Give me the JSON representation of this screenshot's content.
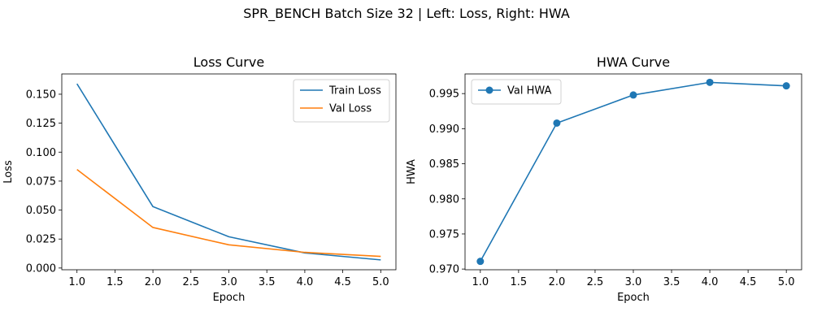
{
  "suptitle": "SPR_BENCH Batch Size 32 | Left: Loss, Right: HWA",
  "chart_data": [
    {
      "type": "line",
      "title": "Loss Curve",
      "xlabel": "Epoch",
      "ylabel": "Loss",
      "x": [
        1,
        2,
        3,
        4,
        5
      ],
      "xlim": [
        0.8,
        5.2
      ],
      "ylim": [
        -0.0015,
        0.1675
      ],
      "xticks": [
        1.0,
        1.5,
        2.0,
        2.5,
        3.0,
        3.5,
        4.0,
        4.5,
        5.0
      ],
      "xtick_labels": [
        "1.0",
        "1.5",
        "2.0",
        "2.5",
        "3.0",
        "3.5",
        "4.0",
        "4.5",
        "5.0"
      ],
      "yticks": [
        0.0,
        0.025,
        0.05,
        0.075,
        0.1,
        0.125,
        0.15
      ],
      "ytick_labels": [
        "0.000",
        "0.025",
        "0.050",
        "0.075",
        "0.100",
        "0.125",
        "0.150"
      ],
      "grid": false,
      "legend": "top-right",
      "series": [
        {
          "name": "Train Loss",
          "values": [
            0.159,
            0.053,
            0.027,
            0.013,
            0.007
          ],
          "color": "#1f77b4",
          "marker": false
        },
        {
          "name": "Val Loss",
          "values": [
            0.085,
            0.035,
            0.02,
            0.0135,
            0.01
          ],
          "color": "#ff7f0e",
          "marker": false
        }
      ]
    },
    {
      "type": "line",
      "title": "HWA Curve",
      "xlabel": "Epoch",
      "ylabel": "HWA",
      "x": [
        1,
        2,
        3,
        4,
        5
      ],
      "xlim": [
        0.8,
        5.2
      ],
      "ylim": [
        0.9699,
        0.9978
      ],
      "xticks": [
        1.0,
        1.5,
        2.0,
        2.5,
        3.0,
        3.5,
        4.0,
        4.5,
        5.0
      ],
      "xtick_labels": [
        "1.0",
        "1.5",
        "2.0",
        "2.5",
        "3.0",
        "3.5",
        "4.0",
        "4.5",
        "5.0"
      ],
      "yticks": [
        0.97,
        0.975,
        0.98,
        0.985,
        0.99,
        0.995
      ],
      "ytick_labels": [
        "0.970",
        "0.975",
        "0.980",
        "0.985",
        "0.990",
        "0.995"
      ],
      "grid": false,
      "legend": "top-left",
      "series": [
        {
          "name": "Val HWA",
          "values": [
            0.9711,
            0.9908,
            0.9948,
            0.9966,
            0.9961
          ],
          "color": "#1f77b4",
          "marker": true
        }
      ]
    }
  ]
}
